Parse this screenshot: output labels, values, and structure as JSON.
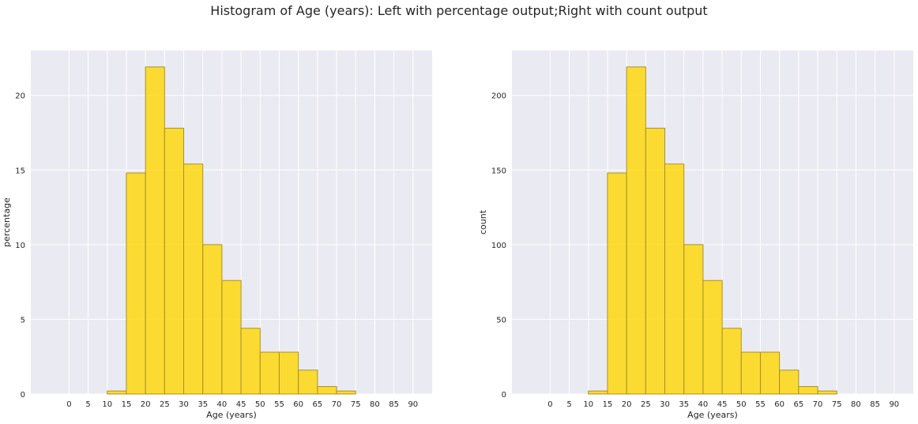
{
  "suptitle": "Histogram of Age (years): Left with percentage output;Right with count output",
  "colors": {
    "bar_fill": "#FFD700",
    "bar_edge": "#A8922A",
    "plot_bg": "#EAEAF2",
    "grid": "#FFFFFF"
  },
  "chart_data": [
    {
      "type": "bar",
      "histogram": true,
      "bin_edges": [
        -5,
        0,
        5,
        10,
        15,
        20,
        25,
        30,
        35,
        40,
        45,
        50,
        55,
        60,
        65,
        70,
        75,
        80,
        85,
        90
      ],
      "values": [
        0,
        0,
        0,
        0.2,
        14.8,
        21.9,
        17.8,
        15.4,
        10.0,
        7.6,
        4.4,
        2.8,
        2.8,
        1.6,
        0.5,
        0.2,
        0,
        0,
        0
      ],
      "xlabel": "Age (years)",
      "ylabel": "percentage",
      "xticks": [
        "0",
        "5",
        "10",
        "15",
        "20",
        "25",
        "30",
        "35",
        "40",
        "45",
        "50",
        "55",
        "60",
        "65",
        "70",
        "75",
        "80",
        "85",
        "90"
      ],
      "yticks": [
        "0",
        "5",
        "10",
        "15",
        "20"
      ],
      "ylim": [
        0,
        23
      ],
      "grid": true
    },
    {
      "type": "bar",
      "histogram": true,
      "bin_edges": [
        -5,
        0,
        5,
        10,
        15,
        20,
        25,
        30,
        35,
        40,
        45,
        50,
        55,
        60,
        65,
        70,
        75,
        80,
        85,
        90
      ],
      "values": [
        0,
        0,
        0,
        2,
        148,
        219,
        178,
        154,
        100,
        76,
        44,
        28,
        28,
        16,
        5,
        2,
        0,
        0,
        0
      ],
      "xlabel": "Age (years)",
      "ylabel": "count",
      "xticks": [
        "0",
        "5",
        "10",
        "15",
        "20",
        "25",
        "30",
        "35",
        "40",
        "45",
        "50",
        "55",
        "60",
        "65",
        "70",
        "75",
        "80",
        "85",
        "90"
      ],
      "yticks": [
        "0",
        "50",
        "100",
        "150",
        "200"
      ],
      "ylim": [
        0,
        230
      ],
      "grid": true
    }
  ]
}
